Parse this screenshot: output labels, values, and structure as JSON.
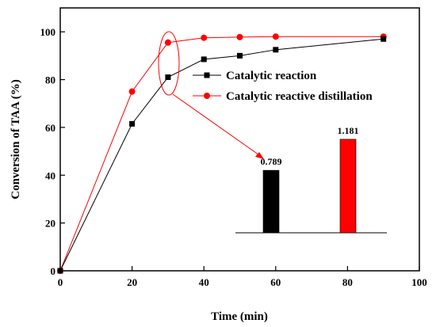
{
  "chart_data": {
    "type": "line",
    "title": "",
    "xlabel": "Time (min)",
    "ylabel": "Conversion of TAA (%)",
    "xlim": [
      0,
      100
    ],
    "ylim": [
      0,
      110
    ],
    "xticks": [
      0,
      20,
      40,
      60,
      80,
      100
    ],
    "yticks": [
      0,
      20,
      40,
      60,
      80,
      100
    ],
    "grid": false,
    "legend_position": "center-right",
    "series": [
      {
        "name": "Catalytic reaction",
        "color": "#000000",
        "marker": "square",
        "x": [
          0,
          20,
          30,
          40,
          50,
          60,
          90
        ],
        "y": [
          0,
          61.5,
          81,
          88.5,
          90,
          92.5,
          97
        ]
      },
      {
        "name": "Catalytic reactive distillation",
        "color": "#ff0000",
        "marker": "circle",
        "x": [
          0,
          20,
          30,
          40,
          50,
          60,
          90
        ],
        "y": [
          0,
          75,
          95.5,
          97.5,
          97.8,
          98,
          98
        ]
      }
    ],
    "inset": {
      "type": "bar",
      "categories": [
        "Catalytic reaction",
        "Catalytic reactive distillation"
      ],
      "values": [
        0.789,
        1.181
      ],
      "value_labels": [
        "0.789",
        "1.181"
      ],
      "colors": [
        "#000000",
        "#ff0000"
      ]
    }
  }
}
